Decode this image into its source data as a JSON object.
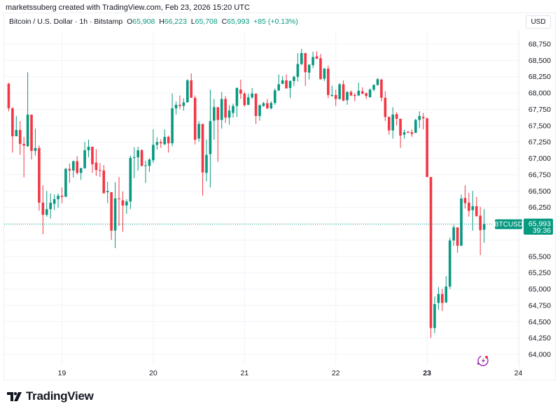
{
  "credit": "marketssuberg created with TradingView.com, Feb 23, 2026 15:20 UTC",
  "legend": {
    "symbol": "Bitcoin / U.S. Dollar · 1h · Bitstamp",
    "o_label": "O",
    "o": "65,908",
    "h_label": "H",
    "h": "66,223",
    "l_label": "L",
    "l": "65,708",
    "c_label": "C",
    "c": "65,993",
    "change": "+85 (+0.13%)"
  },
  "currency_button": "USD",
  "price_tag": {
    "symbol": "BTCUSD",
    "price": "65,993",
    "countdown": "39:36"
  },
  "brand": "TradingView",
  "icons": {
    "alert": "lightning-alert-icon",
    "logo": "tradingview-logo-icon"
  },
  "colors": {
    "up": "#089981",
    "down": "#f23645",
    "grid": "#f0f3fa",
    "text": "#131722",
    "alert_icon": "#9c27b0"
  },
  "chart_data": {
    "type": "candlestick",
    "interval": "1h",
    "ylim": [
      63900,
      68850
    ],
    "y_ticks": [
      64000,
      64250,
      64500,
      64750,
      65000,
      65250,
      65500,
      65750,
      66000,
      66250,
      66500,
      66750,
      67000,
      67250,
      67500,
      67750,
      68000,
      68250,
      68500,
      68750
    ],
    "x_ticks": [
      {
        "label": "19",
        "date": "2026-02-19T00:00",
        "bold": false
      },
      {
        "label": "20",
        "date": "2026-02-20T00:00",
        "bold": false
      },
      {
        "label": "21",
        "date": "2026-02-21T00:00",
        "bold": false
      },
      {
        "label": "22",
        "date": "2026-02-22T00:00",
        "bold": false
      },
      {
        "label": "23",
        "date": "2026-02-23T00:00",
        "bold": true
      },
      {
        "label": "24",
        "date": "2026-02-24T00:00",
        "bold": false
      }
    ],
    "grid": true,
    "last_price": 65993,
    "fields": [
      "time",
      "open",
      "high",
      "low",
      "close"
    ],
    "candles": [
      [
        "2026-02-18T10:00",
        68141,
        68159,
        67720,
        67766
      ],
      [
        "2026-02-18T11:00",
        67766,
        67784,
        67089,
        67338
      ],
      [
        "2026-02-18T12:00",
        67338,
        67649,
        67338,
        67435
      ],
      [
        "2026-02-18T13:00",
        67435,
        67570,
        67053,
        67221
      ],
      [
        "2026-02-18T14:00",
        67221,
        67328,
        66707,
        67196
      ],
      [
        "2026-02-18T15:00",
        67185,
        68319,
        67178,
        67670
      ],
      [
        "2026-02-18T16:00",
        67670,
        67670,
        66982,
        67114
      ],
      [
        "2026-02-18T17:00",
        67114,
        67453,
        67042,
        67157
      ],
      [
        "2026-02-18T18:00",
        67157,
        67196,
        66197,
        66322
      ],
      [
        "2026-02-18T19:00",
        66322,
        66589,
        65840,
        66136
      ],
      [
        "2026-02-18T20:00",
        66136,
        66500,
        66108,
        66222
      ],
      [
        "2026-02-18T21:00",
        66222,
        66464,
        66079,
        66322
      ],
      [
        "2026-02-18T22:00",
        66304,
        66447,
        66208,
        66375
      ],
      [
        "2026-02-18T23:00",
        66375,
        66464,
        66243,
        66429
      ],
      [
        "2026-02-19T00:00",
        66429,
        66554,
        66315,
        66411
      ],
      [
        "2026-02-19T01:00",
        66411,
        66857,
        66411,
        66839
      ],
      [
        "2026-02-19T02:00",
        66839,
        66921,
        66625,
        66814
      ],
      [
        "2026-02-19T03:00",
        66814,
        66964,
        66707,
        66957
      ],
      [
        "2026-02-19T04:00",
        66957,
        67035,
        66750,
        66778
      ],
      [
        "2026-02-19T05:00",
        66778,
        66857,
        66671,
        66850
      ],
      [
        "2026-02-19T06:00",
        66850,
        67249,
        66839,
        67124
      ],
      [
        "2026-02-19T07:00",
        67124,
        67285,
        67017,
        67178
      ],
      [
        "2026-02-19T08:00",
        67178,
        67178,
        66778,
        66910
      ],
      [
        "2026-02-19T09:00",
        66935,
        67142,
        66732,
        66821
      ],
      [
        "2026-02-19T10:00",
        66821,
        66928,
        66714,
        66814
      ],
      [
        "2026-02-19T11:00",
        66814,
        66900,
        66465,
        66465
      ],
      [
        "2026-02-19T12:00",
        66482,
        66643,
        66315,
        66500
      ],
      [
        "2026-02-19T13:00",
        66482,
        66482,
        65751,
        65894
      ],
      [
        "2026-02-19T14:00",
        65894,
        66636,
        65626,
        66386
      ],
      [
        "2026-02-19T15:00",
        66386,
        66714,
        65965,
        66375
      ],
      [
        "2026-02-19T16:00",
        66358,
        66493,
        65876,
        66279
      ],
      [
        "2026-02-19T17:00",
        66279,
        66375,
        66151,
        66340
      ],
      [
        "2026-02-19T18:00",
        66340,
        67042,
        66222,
        67007
      ],
      [
        "2026-02-19T19:00",
        67007,
        67171,
        66696,
        67017
      ],
      [
        "2026-02-19T20:00",
        67017,
        67178,
        66814,
        67124
      ],
      [
        "2026-02-19T21:00",
        67124,
        67142,
        66875,
        66885
      ],
      [
        "2026-02-19T22:00",
        66885,
        66964,
        66625,
        66893
      ],
      [
        "2026-02-19T23:00",
        66885,
        67000,
        66793,
        66982
      ],
      [
        "2026-02-20T00:00",
        66971,
        67445,
        66928,
        67206
      ],
      [
        "2026-02-20T01:00",
        67206,
        67321,
        67135,
        67249
      ],
      [
        "2026-02-20T02:00",
        67249,
        67292,
        67160,
        67231
      ],
      [
        "2026-02-20T03:00",
        67214,
        67445,
        67206,
        67328
      ],
      [
        "2026-02-20T04:00",
        67328,
        67349,
        67089,
        67231
      ],
      [
        "2026-02-20T05:00",
        67231,
        67991,
        67185,
        67766
      ],
      [
        "2026-02-20T06:00",
        67766,
        67873,
        67670,
        67820
      ],
      [
        "2026-02-20T07:00",
        67820,
        67963,
        67756,
        67802
      ],
      [
        "2026-02-20T08:00",
        67802,
        67920,
        67731,
        67856
      ],
      [
        "2026-02-20T09:00",
        67856,
        68212,
        67856,
        68194
      ],
      [
        "2026-02-20T10:00",
        68194,
        68301,
        67927,
        67927
      ],
      [
        "2026-02-20T11:00",
        67927,
        67963,
        67214,
        67285
      ],
      [
        "2026-02-20T12:00",
        67303,
        67570,
        67256,
        67527
      ],
      [
        "2026-02-20T13:00",
        67527,
        67527,
        66429,
        66785
      ],
      [
        "2026-02-20T14:00",
        66778,
        67285,
        66650,
        67053
      ],
      [
        "2026-02-20T15:00",
        67064,
        68052,
        66554,
        67570
      ],
      [
        "2026-02-20T16:00",
        67577,
        67909,
        67285,
        67784
      ],
      [
        "2026-02-20T17:00",
        67784,
        67784,
        66946,
        67588
      ],
      [
        "2026-02-20T18:00",
        67588,
        68018,
        67456,
        67909
      ],
      [
        "2026-02-20T19:00",
        67909,
        67955,
        67542,
        67624
      ],
      [
        "2026-02-20T20:00",
        67624,
        67813,
        67517,
        67731
      ],
      [
        "2026-02-20T21:00",
        67695,
        67838,
        67624,
        67802
      ],
      [
        "2026-02-20T22:00",
        67802,
        68087,
        67634,
        68077
      ],
      [
        "2026-02-20T23:00",
        68052,
        68205,
        67909,
        67991
      ],
      [
        "2026-02-21T00:00",
        67991,
        68016,
        67791,
        67813
      ],
      [
        "2026-02-21T01:00",
        67820,
        67991,
        67813,
        67934
      ],
      [
        "2026-02-21T02:00",
        67934,
        68077,
        67909,
        67991
      ],
      [
        "2026-02-21T03:00",
        67991,
        67991,
        67527,
        67649
      ],
      [
        "2026-02-21T04:00",
        67649,
        67827,
        67577,
        67813
      ],
      [
        "2026-02-21T05:00",
        67802,
        67863,
        67791,
        67845
      ],
      [
        "2026-02-21T06:00",
        67845,
        67909,
        67756,
        67766
      ],
      [
        "2026-02-21T07:00",
        67766,
        67873,
        67749,
        67848
      ],
      [
        "2026-02-21T08:00",
        67848,
        68070,
        67820,
        68041
      ],
      [
        "2026-02-21T09:00",
        68041,
        68284,
        68027,
        68134
      ],
      [
        "2026-02-21T10:00",
        68141,
        68255,
        68134,
        68194
      ],
      [
        "2026-02-21T11:00",
        68194,
        68284,
        68070,
        68070
      ],
      [
        "2026-02-21T12:00",
        68077,
        68194,
        67920,
        68184
      ],
      [
        "2026-02-21T13:00",
        68184,
        68266,
        68105,
        68248
      ],
      [
        "2026-02-21T14:00",
        68248,
        68612,
        68177,
        68444
      ],
      [
        "2026-02-21T15:00",
        68444,
        68676,
        68426,
        68612
      ],
      [
        "2026-02-21T16:00",
        68612,
        68612,
        68105,
        68319
      ],
      [
        "2026-02-21T17:00",
        68312,
        68444,
        68205,
        68433
      ],
      [
        "2026-02-21T18:00",
        68426,
        68633,
        68383,
        68551
      ],
      [
        "2026-02-21T19:00",
        68562,
        68640,
        68515,
        68526
      ],
      [
        "2026-02-21T20:00",
        68533,
        68598,
        68205,
        68212
      ],
      [
        "2026-02-21T21:00",
        68219,
        68383,
        68184,
        68373
      ],
      [
        "2026-02-21T22:00",
        68373,
        68419,
        67920,
        67970
      ],
      [
        "2026-02-21T23:00",
        67955,
        68112,
        67945,
        67970
      ],
      [
        "2026-02-22T00:00",
        67970,
        68052,
        67802,
        67909
      ],
      [
        "2026-02-22T01:00",
        67909,
        68148,
        67898,
        68134
      ],
      [
        "2026-02-22T02:00",
        68134,
        68194,
        67873,
        67884
      ],
      [
        "2026-02-22T03:00",
        67891,
        68027,
        67820,
        68016
      ],
      [
        "2026-02-22T04:00",
        68016,
        68041,
        67955,
        67963
      ],
      [
        "2026-02-22T05:00",
        67970,
        67998,
        67873,
        67955
      ],
      [
        "2026-02-22T06:00",
        67963,
        68159,
        67955,
        68034
      ],
      [
        "2026-02-22T07:00",
        68027,
        68087,
        67980,
        67991
      ],
      [
        "2026-02-22T08:00",
        67998,
        68005,
        67909,
        67955
      ],
      [
        "2026-02-22T09:00",
        67934,
        68070,
        67934,
        68052
      ],
      [
        "2026-02-22T10:00",
        68052,
        68134,
        68027,
        68123
      ],
      [
        "2026-02-22T11:00",
        68123,
        68230,
        68112,
        68212
      ],
      [
        "2026-02-22T12:00",
        68205,
        68219,
        67873,
        67927
      ],
      [
        "2026-02-22T13:00",
        67927,
        68027,
        67570,
        67634
      ],
      [
        "2026-02-22T14:00",
        67634,
        67642,
        67363,
        67428
      ],
      [
        "2026-02-22T15:00",
        67428,
        67784,
        67303,
        67670
      ],
      [
        "2026-02-22T16:00",
        67677,
        67706,
        67506,
        67606
      ],
      [
        "2026-02-22T17:00",
        67606,
        67606,
        67160,
        67349
      ],
      [
        "2026-02-22T18:00",
        67363,
        67435,
        67303,
        67399
      ],
      [
        "2026-02-22T19:00",
        67406,
        67420,
        67385,
        67392
      ],
      [
        "2026-02-22T20:00",
        67399,
        67445,
        67328,
        67374
      ],
      [
        "2026-02-22T21:00",
        67392,
        67606,
        67385,
        67588
      ],
      [
        "2026-02-22T22:00",
        67588,
        67720,
        67463,
        67649
      ],
      [
        "2026-02-22T23:00",
        67634,
        67695,
        67445,
        67613
      ],
      [
        "2026-02-23T00:00",
        67613,
        67624,
        66714,
        66714
      ],
      [
        "2026-02-23T01:00",
        66714,
        66714,
        64253,
        64403
      ],
      [
        "2026-02-23T02:00",
        64403,
        64888,
        64324,
        64770
      ],
      [
        "2026-02-23T03:00",
        64788,
        65031,
        64681,
        64924
      ],
      [
        "2026-02-23T04:00",
        64924,
        65002,
        64663,
        64788
      ],
      [
        "2026-02-23T05:00",
        64795,
        65198,
        64788,
        65038
      ],
      [
        "2026-02-23T06:00",
        65038,
        65787,
        65002,
        65744
      ],
      [
        "2026-02-23T07:00",
        65744,
        65981,
        65662,
        65944
      ],
      [
        "2026-02-23T08:00",
        65944,
        65944,
        65555,
        65662
      ],
      [
        "2026-02-23T09:00",
        65662,
        66447,
        65662,
        66386
      ],
      [
        "2026-02-23T10:00",
        66393,
        66589,
        66233,
        66315
      ],
      [
        "2026-02-23T11:00",
        66322,
        66472,
        66108,
        66197
      ],
      [
        "2026-02-23T12:00",
        66208,
        66500,
        65894,
        66268
      ],
      [
        "2026-02-23T13:00",
        66268,
        66411,
        66108,
        66115
      ],
      [
        "2026-02-23T14:00",
        66122,
        66258,
        65519,
        65901
      ],
      [
        "2026-02-23T15:00",
        65908,
        66223,
        65708,
        65993
      ]
    ]
  }
}
